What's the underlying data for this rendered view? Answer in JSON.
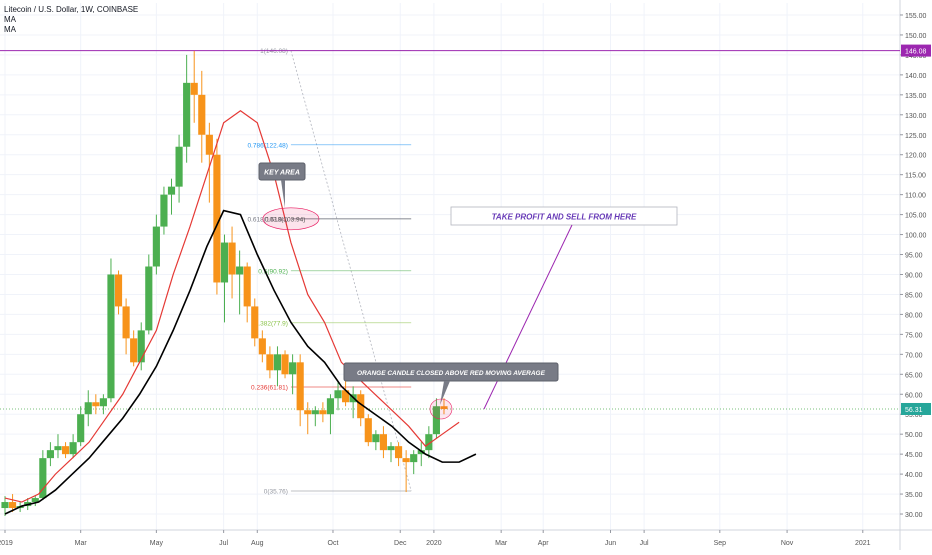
{
  "legend": {
    "title": "Litecoin / U.S. Dollar, 1W, COINBASE",
    "ma1": "MA",
    "ma2": "MA"
  },
  "colors": {
    "up": "#4caf50",
    "down": "#f7931a",
    "ma_red": "#e53935",
    "ma_black": "#000000",
    "purple": "#9c27b0",
    "price_line": "#4caf50"
  },
  "chart_data": {
    "type": "candlestick",
    "ylim": [
      26,
      158
    ],
    "yticks": [
      30,
      35,
      40,
      45,
      50,
      55,
      60,
      65,
      70,
      75,
      80,
      85,
      90,
      95,
      100,
      105,
      110,
      115,
      120,
      125,
      130,
      135,
      140,
      145,
      150,
      155
    ],
    "ytick_labels": [
      "30.00",
      "35.00",
      "40.00",
      "45.00",
      "50.00",
      "55.00",
      "60.00",
      "65.00",
      "70.00",
      "75.00",
      "80.00",
      "85.00",
      "90.00",
      "95.00",
      "100.00",
      "105.00",
      "110.00",
      "115.00",
      "120.00",
      "125.00",
      "130.00",
      "135.00",
      "140.00",
      "145.00",
      "150.00",
      "155.00"
    ],
    "xticks": [
      {
        "label": "2019",
        "i": 0
      },
      {
        "label": "Mar",
        "i": 9
      },
      {
        "label": "May",
        "i": 18
      },
      {
        "label": "Jul",
        "i": 26
      },
      {
        "label": "Aug",
        "i": 30
      },
      {
        "label": "Oct",
        "i": 39
      },
      {
        "label": "Dec",
        "i": 47
      },
      {
        "label": "2020",
        "i": 51
      },
      {
        "label": "Mar",
        "i": 59
      },
      {
        "label": "Apr",
        "i": 64
      },
      {
        "label": "Jun",
        "i": 72
      },
      {
        "label": "Jul",
        "i": 76
      },
      {
        "label": "Sep",
        "i": 85
      },
      {
        "label": "Nov",
        "i": 93
      },
      {
        "label": "2021",
        "i": 102
      }
    ],
    "x_index_max": 105,
    "candles": [
      [
        31.5,
        34.5,
        29.5,
        33.0
      ],
      [
        33.0,
        35.0,
        30.5,
        31.5
      ],
      [
        31.5,
        33.0,
        30.5,
        32.0
      ],
      [
        32.0,
        34.0,
        31.0,
        33.0
      ],
      [
        33.0,
        34.5,
        32.0,
        34.0
      ],
      [
        34.0,
        46.0,
        33.5,
        44.0
      ],
      [
        44.0,
        48.0,
        42.0,
        46.0
      ],
      [
        46.0,
        50.0,
        44.0,
        47.0
      ],
      [
        47.0,
        48.0,
        44.0,
        45.0
      ],
      [
        45.0,
        50.0,
        44.0,
        48.0
      ],
      [
        48.0,
        57.0,
        47.0,
        55.0
      ],
      [
        55.0,
        61.0,
        52.0,
        58.0
      ],
      [
        58.0,
        60.0,
        55.0,
        57.0
      ],
      [
        57.0,
        60.0,
        55.0,
        59.0
      ],
      [
        59.0,
        94.0,
        58.0,
        90.0
      ],
      [
        90.0,
        91.0,
        80.0,
        82.0
      ],
      [
        82.0,
        84.0,
        70.0,
        74.0
      ],
      [
        74.0,
        76.0,
        67.0,
        68.0
      ],
      [
        68.0,
        78.0,
        66.0,
        76.0
      ],
      [
        76.0,
        95.0,
        75.0,
        92.0
      ],
      [
        92.0,
        105.0,
        90.0,
        102.0
      ],
      [
        102.0,
        112.0,
        100.0,
        110.0
      ],
      [
        110.0,
        114.0,
        105.0,
        112.0
      ],
      [
        112.0,
        125.0,
        108.0,
        122.0
      ],
      [
        122.0,
        145.0,
        118.0,
        138.0
      ],
      [
        138.0,
        146.0,
        128.0,
        135.0
      ],
      [
        135.0,
        141.0,
        118.0,
        125.0
      ],
      [
        125.0,
        128.0,
        108.0,
        120.0
      ],
      [
        120.0,
        124.0,
        85.0,
        88.0
      ],
      [
        88.0,
        100.0,
        78.0,
        98.0
      ],
      [
        98.0,
        102.0,
        84.0,
        90.0
      ],
      [
        90.0,
        96.0,
        80.0,
        92.0
      ],
      [
        92.0,
        93.0,
        78.0,
        82.0
      ],
      [
        82.0,
        84.0,
        72.0,
        74.0
      ],
      [
        74.0,
        76.0,
        68.0,
        70.0
      ],
      [
        70.0,
        72.0,
        64.0,
        66.0
      ],
      [
        66.0,
        72.0,
        62.0,
        70.0
      ],
      [
        70.0,
        71.0,
        64.0,
        65.0
      ],
      [
        65.0,
        70.0,
        60.0,
        68.0
      ],
      [
        68.0,
        70.0,
        52.0,
        56.0
      ],
      [
        56.0,
        58.0,
        50.0,
        55.0
      ],
      [
        55.0,
        57.0,
        52.0,
        56.0
      ],
      [
        56.0,
        58.0,
        53.0,
        55.0
      ],
      [
        55.0,
        60.0,
        50.0,
        59.0
      ],
      [
        59.0,
        63.0,
        56.0,
        61.0
      ],
      [
        61.0,
        64.0,
        57.0,
        58.0
      ],
      [
        58.0,
        62.0,
        54.0,
        60.0
      ],
      [
        60.0,
        61.0,
        52.0,
        54.0
      ],
      [
        54.0,
        55.0,
        47.0,
        48.0
      ],
      [
        48.0,
        51.0,
        46.0,
        50.0
      ],
      [
        50.0,
        52.0,
        44.0,
        46.0
      ],
      [
        46.0,
        48.0,
        43.0,
        47.0
      ],
      [
        47.0,
        48.0,
        42.0,
        44.0
      ],
      [
        44.0,
        46.0,
        35.5,
        43.0
      ],
      [
        43.0,
        46.0,
        40.0,
        45.0
      ],
      [
        45.0,
        48.0,
        42.0,
        46.0
      ],
      [
        46.0,
        52.0,
        44.0,
        50.0
      ],
      [
        50.0,
        59.0,
        49.0,
        57.0
      ],
      [
        57.0,
        59.0,
        55.0,
        56.3
      ]
    ],
    "candle_x": [
      0,
      0.9,
      1.8,
      2.7,
      3.6,
      4.5,
      5.4,
      6.3,
      7.2,
      8.1,
      9,
      9.9,
      10.8,
      11.7,
      12.6,
      13.5,
      14.4,
      15.3,
      16.2,
      17.1,
      18,
      18.9,
      19.8,
      20.7,
      21.6,
      22.5,
      23.4,
      24.3,
      25.2,
      26.1,
      27,
      27.9,
      28.8,
      29.7,
      30.6,
      31.5,
      32.4,
      33.3,
      34.2,
      35.1,
      36,
      36.9,
      37.8,
      38.7,
      39.6,
      40.5,
      41.4,
      42.3,
      43.2,
      44.1,
      45,
      45.9,
      46.8,
      47.7,
      48.6,
      49.5,
      50.4,
      51.3,
      52.2
    ],
    "series": [
      {
        "values_x": [
          0,
          2,
          4,
          6,
          8,
          10,
          12,
          14,
          16,
          18,
          20,
          22,
          24,
          26,
          28,
          30,
          32,
          34,
          36,
          38,
          40,
          42,
          44,
          46,
          48,
          50,
          52,
          54
        ],
        "values": [
          34,
          33,
          35,
          40,
          44,
          48,
          54,
          60,
          68,
          76,
          90,
          102,
          115,
          128,
          131,
          128,
          115,
          98,
          85,
          78,
          68,
          64,
          60,
          56,
          52,
          47,
          50,
          53
        ]
      },
      {
        "values_x": [
          0,
          2,
          4,
          6,
          8,
          10,
          12,
          14,
          16,
          18,
          20,
          22,
          24,
          26,
          28,
          30,
          32,
          34,
          36,
          38,
          40,
          42,
          44,
          46,
          48,
          50,
          52,
          54,
          56
        ],
        "values": [
          30,
          32,
          33,
          36,
          40,
          44,
          49,
          54,
          60,
          67,
          76,
          86,
          97,
          106,
          105,
          95,
          86,
          78,
          72,
          68,
          62,
          58,
          55,
          52,
          48,
          45,
          43,
          43,
          45
        ]
      }
    ],
    "current_price": 56.31,
    "current_price_label": "56.31",
    "high_price": 146.08,
    "high_price_label": "146.08",
    "fib_levels": [
      {
        "label": "1(146.08)",
        "value": 146.08
      },
      {
        "label": "0.786(122.48)",
        "value": 122.48
      },
      {
        "label": "0.618(103.94)",
        "value": 103.94
      },
      {
        "label": "0.5(90.92)",
        "value": 90.92
      },
      {
        "label": "0.382(77.9)",
        "value": 77.9
      },
      {
        "label": "0.236(61.81)",
        "value": 61.81
      },
      {
        "label": "0(35.76)",
        "value": 35.76
      }
    ],
    "annotations": {
      "key_area": "KEY AREA",
      "take_profit": "TAKE PROFIT AND SELL FROM HERE",
      "orange_candle": "ORANGE CANDLE CLOSED ABOVE RED MOVING AVERAGE"
    }
  }
}
